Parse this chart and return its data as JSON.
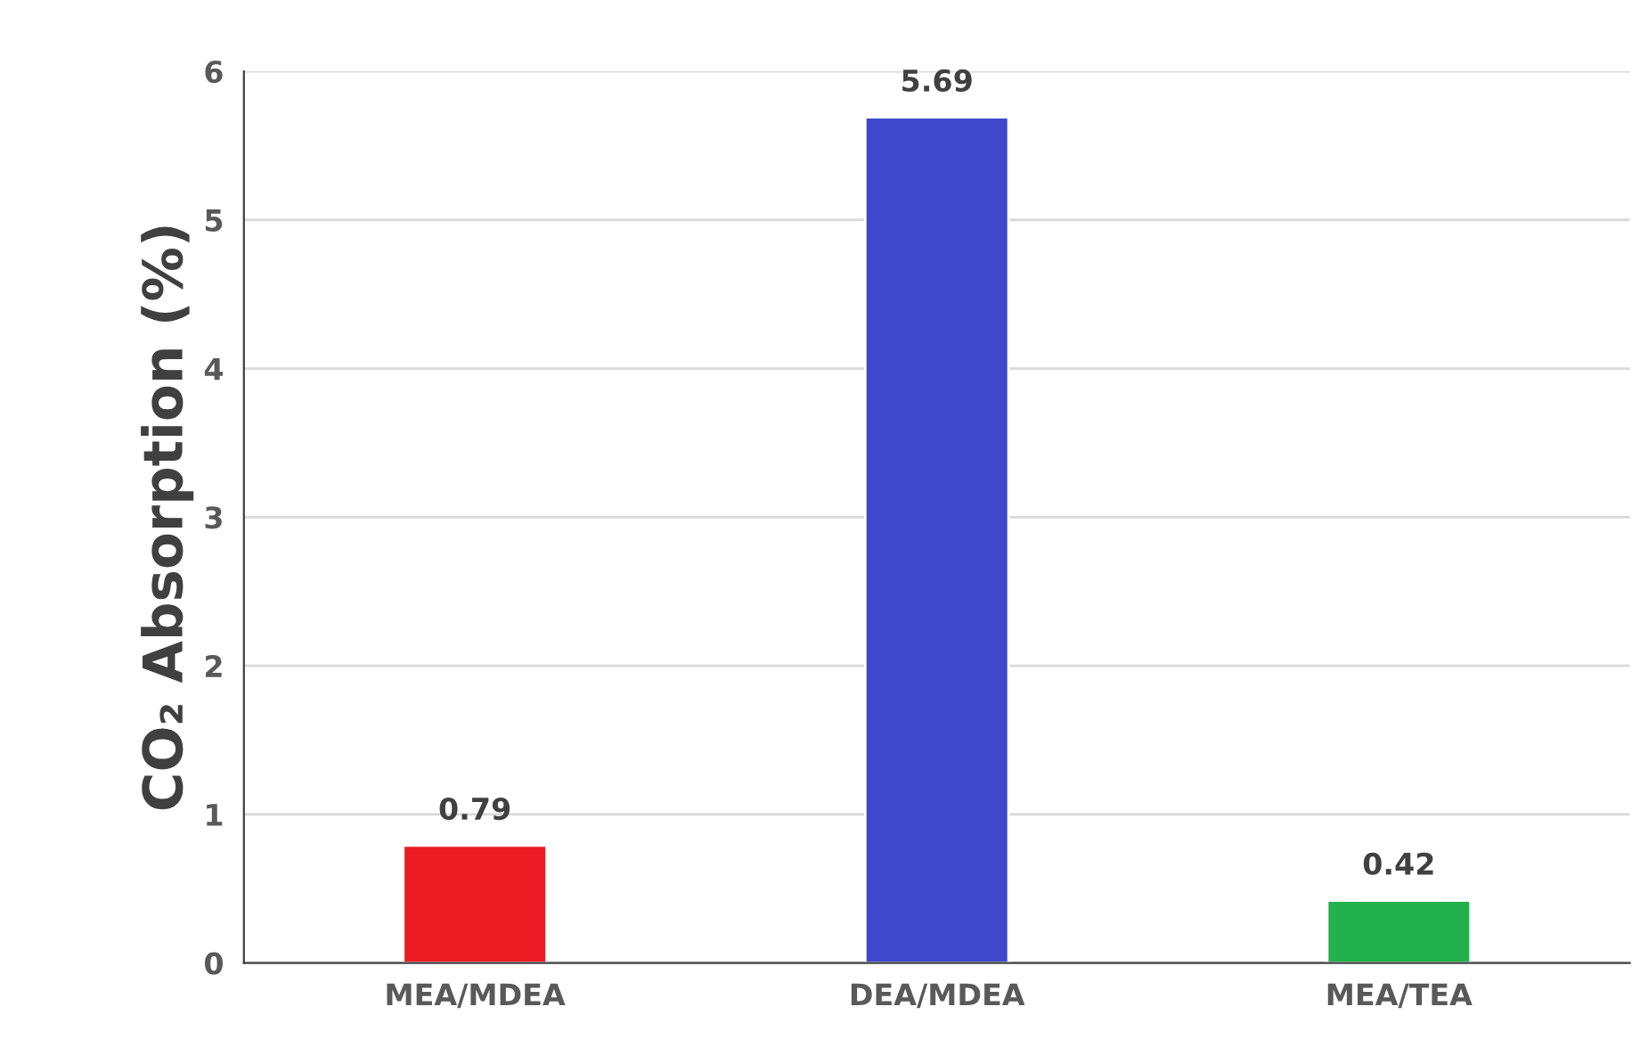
{
  "chart_data": {
    "type": "bar",
    "ylabel": "CO₂ Absorption (%)",
    "categories": [
      "MEA/MDEA",
      "DEA/MDEA",
      "MEA/TEA"
    ],
    "values": [
      0.79,
      5.69,
      0.42
    ],
    "colors": [
      "#ed1c24",
      "#3f48cc",
      "#22b14c"
    ],
    "ylim": [
      0,
      6
    ],
    "yticks": [
      0,
      1,
      2,
      3,
      4,
      5,
      6
    ],
    "grid": "y",
    "data_labels": true
  }
}
